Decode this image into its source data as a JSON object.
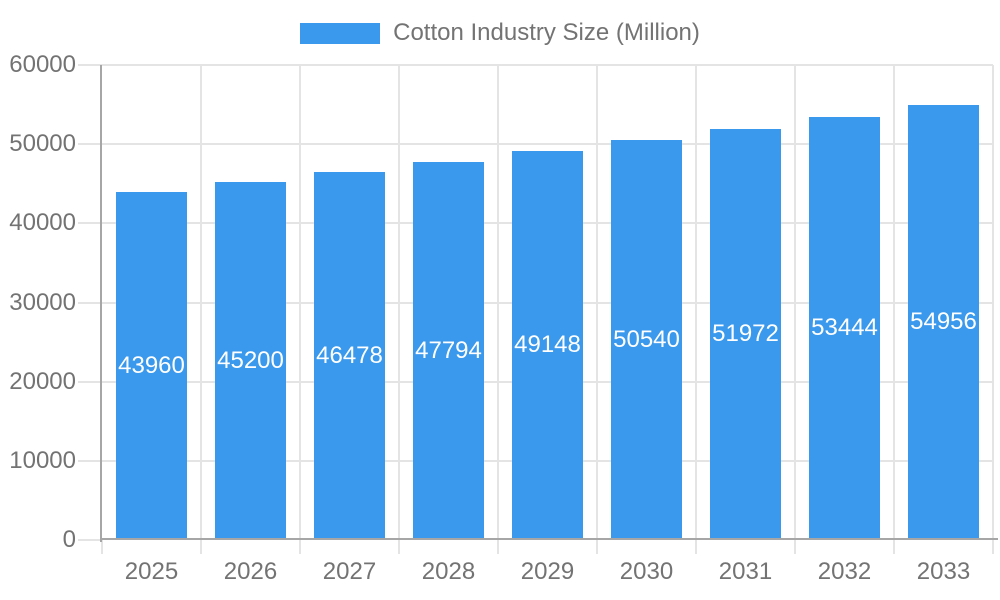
{
  "chart_data": {
    "type": "bar",
    "legend": "Cotton Industry Size (Million)",
    "legend_position": "top-center",
    "categories": [
      "2025",
      "2026",
      "2027",
      "2028",
      "2029",
      "2030",
      "2031",
      "2032",
      "2033"
    ],
    "series": [
      {
        "name": "Cotton Industry Size (Million)",
        "values": [
          43960,
          45200,
          46478,
          47794,
          49148,
          50540,
          51972,
          53444,
          54956
        ]
      }
    ],
    "data_labels": [
      "43960",
      "45200",
      "46478",
      "47794",
      "49148",
      "50540",
      "51972",
      "53444",
      "54956"
    ],
    "ylim": [
      0,
      60000
    ],
    "y_ticks": [
      "0",
      "10000",
      "20000",
      "30000",
      "40000",
      "50000",
      "60000"
    ],
    "grid": "on",
    "colors": {
      "bar": "#3A99EC",
      "grid": "#E4E4E4",
      "axis": "#A6A6A6",
      "text": "#737373",
      "bar_label": "#FFFFFF",
      "background": "#FFFFFF"
    }
  }
}
